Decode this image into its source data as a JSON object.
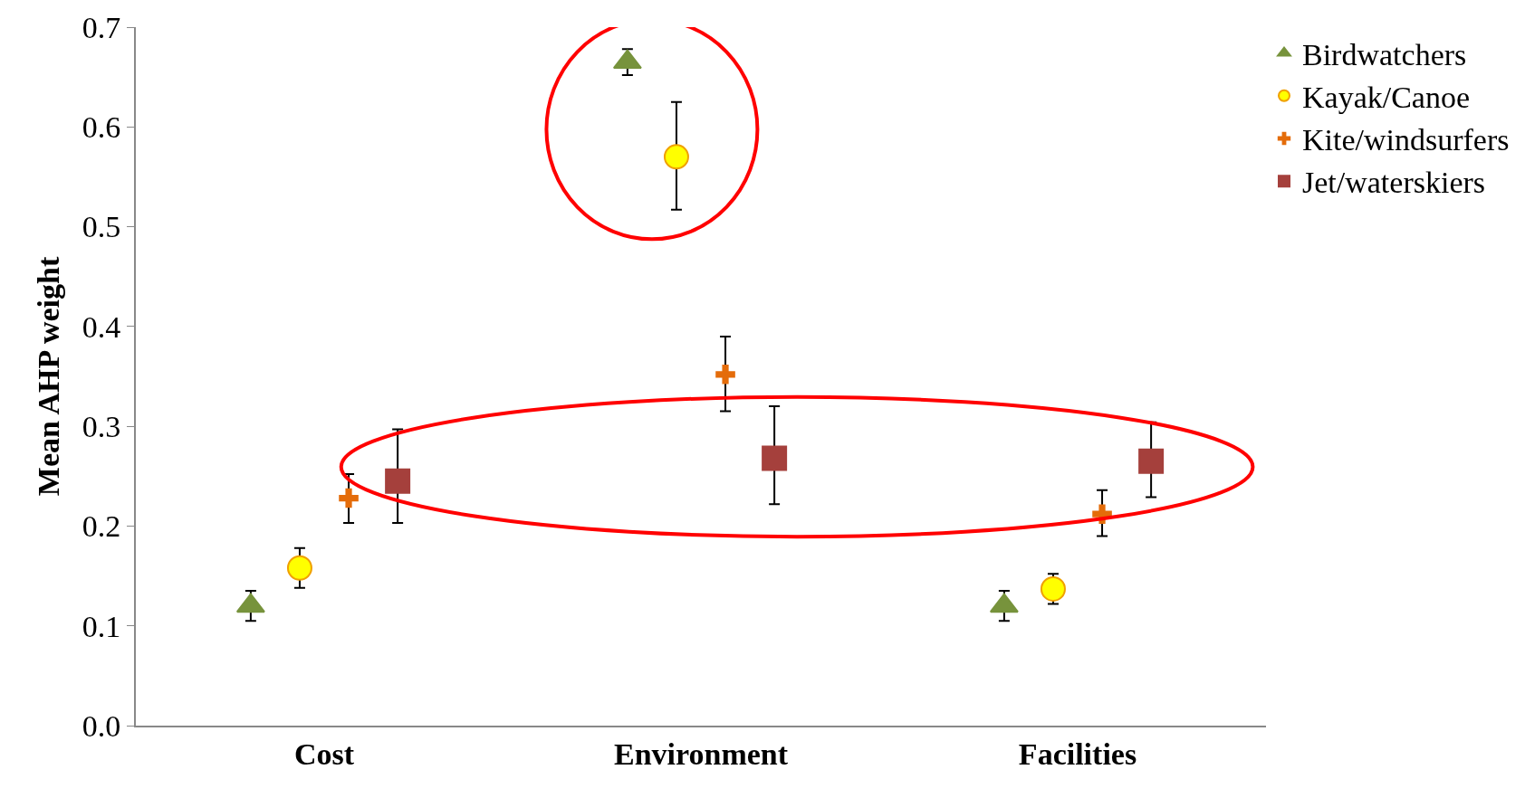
{
  "chart_data": {
    "type": "scatter",
    "ylabel": "Mean AHP weight",
    "categories": [
      "Cost",
      "Environment",
      "Facilities"
    ],
    "ylim": [
      0,
      0.7
    ],
    "yticks": [
      {
        "value": 0,
        "label": "0.0"
      },
      0.1,
      0.2,
      0.3,
      0.4,
      0.5,
      0.6,
      0.7
    ],
    "legend": "top right",
    "series": [
      {
        "name": "Birdwatchers",
        "color": "#77933c",
        "marker": "triangle",
        "values": [
          0.12,
          0.665,
          0.12
        ],
        "errors": [
          [
            0.105,
            0.135
          ],
          [
            0.652,
            0.678
          ],
          [
            0.105,
            0.135
          ]
        ]
      },
      {
        "name": "Kayak/Canoe",
        "color": "#ffff00",
        "marker": "circle",
        "values": [
          0.158,
          0.57,
          0.137
        ],
        "errors": [
          [
            0.138,
            0.178
          ],
          [
            0.517,
            0.625
          ],
          [
            0.122,
            0.152
          ]
        ]
      },
      {
        "name": "Kite/windsurfers",
        "color": "#e46c0a",
        "marker": "cross",
        "values": [
          0.228,
          0.352,
          0.212
        ],
        "errors": [
          [
            0.203,
            0.252
          ],
          [
            0.315,
            0.39
          ],
          [
            0.19,
            0.236
          ]
        ]
      },
      {
        "name": "Jet/waterskiers",
        "color": "#a5403c",
        "marker": "square",
        "values": [
          0.245,
          0.268,
          0.265
        ],
        "errors": [
          [
            0.203,
            0.297
          ],
          [
            0.222,
            0.32
          ],
          [
            0.229,
            0.304
          ]
        ]
      }
    ]
  }
}
